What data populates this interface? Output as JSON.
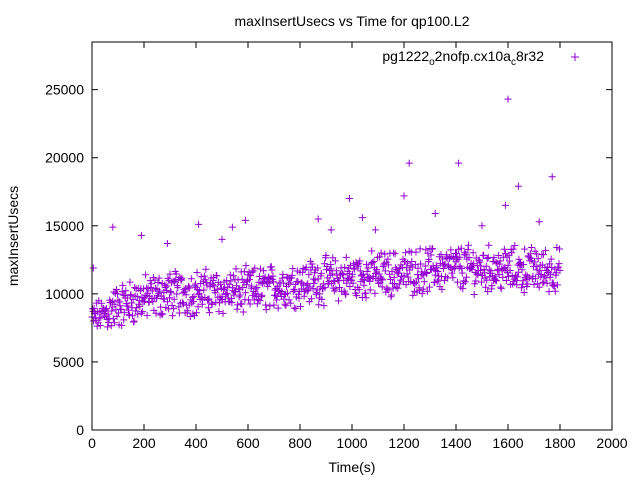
{
  "chart_data": {
    "type": "scatter",
    "title": "maxInsertUsecs vs Time for qp100.L2",
    "xlabel": "Time(s)",
    "ylabel": "maxInsertUsecs",
    "xlim": [
      0,
      2000
    ],
    "ylim": [
      0,
      28500
    ],
    "x_ticks": [
      "0",
      "200",
      "400",
      "600",
      "800",
      "1000",
      "1200",
      "1400",
      "1600",
      "1800",
      "2000"
    ],
    "y_ticks": [
      "0",
      "5000",
      "10000",
      "15000",
      "20000",
      "25000"
    ],
    "legend": {
      "placement": "top-right",
      "marker": "+"
    },
    "series": [
      {
        "name_parts": {
          "a": "pg1222",
          "b": "o",
          "c": "2nofp.cx10a",
          "d": "c",
          "e": "8r32"
        },
        "color": "#9400d3",
        "marker": "plus",
        "trend": [
          [
            0,
            8200
          ],
          [
            50,
            8600
          ],
          [
            100,
            9100
          ],
          [
            200,
            9700
          ],
          [
            300,
            10000
          ],
          [
            400,
            10100
          ],
          [
            600,
            10200
          ],
          [
            800,
            10800
          ],
          [
            1000,
            11200
          ],
          [
            1200,
            11600
          ],
          [
            1400,
            11900
          ],
          [
            1600,
            11800
          ],
          [
            1800,
            11700
          ]
        ],
        "outliers": [
          [
            5,
            11900
          ],
          [
            80,
            14900
          ],
          [
            190,
            14300
          ],
          [
            290,
            13700
          ],
          [
            410,
            15100
          ],
          [
            500,
            14000
          ],
          [
            540,
            14900
          ],
          [
            590,
            15400
          ],
          [
            870,
            15500
          ],
          [
            920,
            14700
          ],
          [
            990,
            17000
          ],
          [
            1040,
            15600
          ],
          [
            1090,
            14700
          ],
          [
            1200,
            17200
          ],
          [
            1220,
            19600
          ],
          [
            1320,
            15900
          ],
          [
            1410,
            19600
          ],
          [
            1500,
            15000
          ],
          [
            1590,
            16500
          ],
          [
            1600,
            24300
          ],
          [
            1640,
            17900
          ],
          [
            1720,
            15300
          ],
          [
            1770,
            18600
          ]
        ]
      }
    ]
  }
}
